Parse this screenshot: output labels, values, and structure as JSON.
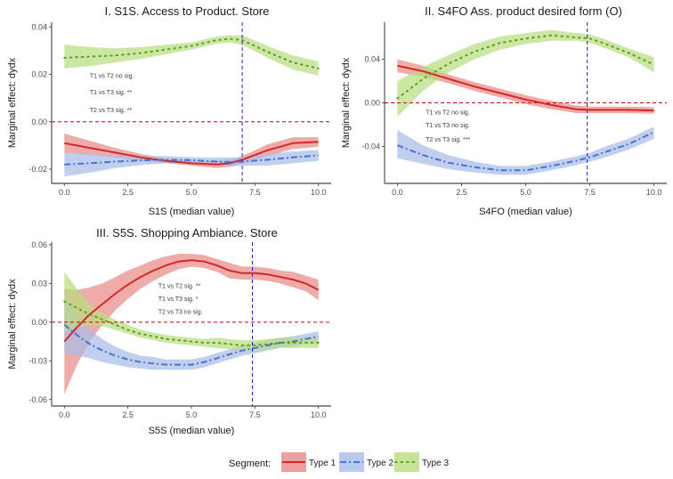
{
  "colors": {
    "type1_line": "#d62728",
    "type1_band": "#e88a86",
    "type2_line": "#4a72d4",
    "type2_band": "#a9bde8",
    "type3_line": "#5c9d25",
    "type3_band": "#b9dc7f",
    "zero_line": "#cc0000",
    "median_line": "#1f1fc8"
  },
  "legend": {
    "title": "Segment:",
    "items": [
      {
        "label": "Type 1",
        "style": "solid"
      },
      {
        "label": "Type 2",
        "style": "dashdot"
      },
      {
        "label": "Type 3",
        "style": "dotted"
      }
    ]
  },
  "chart_data": [
    {
      "type": "line",
      "title": "I. S1S. Access to Product. Store",
      "xlabel": "S1S (median value)",
      "ylabel": "Marginal effect: dydx",
      "xlim": [
        -0.5,
        10.5
      ],
      "ylim": [
        -0.026,
        0.042
      ],
      "xticks": [
        "0.0",
        "2.5",
        "5.0",
        "7.5",
        "10.0"
      ],
      "xtick_values": [
        0,
        2.5,
        5,
        7.5,
        10
      ],
      "yticks": [
        "-0.02",
        "0.00",
        "0.02",
        "0.04"
      ],
      "ytick_values": [
        -0.02,
        0,
        0.02,
        0.04
      ],
      "median_x": 7.0,
      "grid": false,
      "annotations": [
        "T1 vs T2 no sig.",
        "T1 vs T3 sig. **",
        "T2 vs T3 sig. **"
      ],
      "annotation_pos": [
        [
          1.0,
          0.0185
        ],
        [
          1.0,
          0.0115
        ],
        [
          1.0,
          0.004
        ]
      ],
      "x": [
        0,
        1,
        2,
        3,
        4,
        5,
        6,
        6.5,
        7,
        8,
        9,
        10
      ],
      "series": [
        {
          "name": "Type 1",
          "values": [
            -0.009,
            -0.011,
            -0.013,
            -0.015,
            -0.0165,
            -0.0175,
            -0.018,
            -0.0175,
            -0.016,
            -0.012,
            -0.009,
            -0.0085
          ],
          "lower": [
            -0.013,
            -0.014,
            -0.015,
            -0.0165,
            -0.0175,
            -0.0185,
            -0.0195,
            -0.019,
            -0.0175,
            -0.0145,
            -0.0115,
            -0.0105
          ],
          "upper": [
            -0.005,
            -0.008,
            -0.011,
            -0.0135,
            -0.0155,
            -0.0165,
            -0.0165,
            -0.016,
            -0.0145,
            -0.0095,
            -0.0065,
            -0.0065
          ]
        },
        {
          "name": "Type 2",
          "values": [
            -0.018,
            -0.0175,
            -0.0168,
            -0.0163,
            -0.016,
            -0.0162,
            -0.0168,
            -0.017,
            -0.0168,
            -0.016,
            -0.015,
            -0.0142
          ],
          "lower": [
            -0.023,
            -0.0215,
            -0.0195,
            -0.0183,
            -0.0175,
            -0.0175,
            -0.0185,
            -0.019,
            -0.0185,
            -0.0185,
            -0.0175,
            -0.0165
          ],
          "upper": [
            -0.013,
            -0.0135,
            -0.0141,
            -0.0143,
            -0.0145,
            -0.0149,
            -0.0151,
            -0.015,
            -0.0151,
            -0.0135,
            -0.0125,
            -0.0119
          ]
        },
        {
          "name": "Type 3",
          "values": [
            0.027,
            0.0275,
            0.028,
            0.029,
            0.0305,
            0.032,
            0.0345,
            0.035,
            0.0345,
            0.0295,
            0.025,
            0.0225
          ],
          "lower": [
            0.0225,
            0.0235,
            0.025,
            0.0265,
            0.0285,
            0.0305,
            0.033,
            0.0335,
            0.0325,
            0.027,
            0.022,
            0.0195
          ],
          "upper": [
            0.0325,
            0.0315,
            0.031,
            0.0315,
            0.0325,
            0.0335,
            0.036,
            0.0365,
            0.0365,
            0.032,
            0.028,
            0.0255
          ]
        }
      ]
    },
    {
      "type": "line",
      "title": "II. S4FO  Ass. product desired form (O)",
      "xlabel": "S4FO (median value)",
      "ylabel": "Marginal effect: dydx",
      "xlim": [
        -0.5,
        10.5
      ],
      "ylim": [
        -0.074,
        0.074
      ],
      "xticks": [
        "0.0",
        "2.5",
        "5.0",
        "7.5",
        "10.0"
      ],
      "xtick_values": [
        0,
        2.5,
        5,
        7.5,
        10
      ],
      "yticks": [
        "-0.04",
        "0.00",
        "0.04"
      ],
      "ytick_values": [
        -0.04,
        0,
        0.04
      ],
      "median_x": 7.4,
      "grid": false,
      "annotations": [
        "T1 vs T2 no sig.",
        "T1 vs T3  no sig.",
        "T2 vs T3 sig. ***"
      ],
      "annotation_pos": [
        [
          1.1,
          -0.0105
        ],
        [
          1.1,
          -0.0225
        ],
        [
          1.1,
          -0.0355
        ]
      ],
      "x": [
        0,
        1,
        2,
        3,
        4,
        5,
        6,
        7,
        7.5,
        8,
        9,
        10
      ],
      "series": [
        {
          "name": "Type 1",
          "values": [
            0.034,
            0.029,
            0.022,
            0.015,
            0.009,
            0.003,
            -0.002,
            -0.006,
            -0.0065,
            -0.0065,
            -0.0065,
            -0.007
          ],
          "lower": [
            0.028,
            0.024,
            0.018,
            0.011,
            0.005,
            -0.001,
            -0.006,
            -0.0095,
            -0.0095,
            -0.0095,
            -0.0095,
            -0.01
          ],
          "upper": [
            0.04,
            0.034,
            0.026,
            0.019,
            0.013,
            0.007,
            0.002,
            -0.0025,
            -0.0035,
            -0.0035,
            -0.0035,
            -0.004
          ]
        },
        {
          "name": "Type 2",
          "values": [
            -0.039,
            -0.048,
            -0.055,
            -0.059,
            -0.062,
            -0.062,
            -0.058,
            -0.053,
            -0.05,
            -0.046,
            -0.038,
            -0.027
          ],
          "lower": [
            -0.051,
            -0.056,
            -0.061,
            -0.064,
            -0.066,
            -0.066,
            -0.062,
            -0.057,
            -0.054,
            -0.051,
            -0.043,
            -0.033
          ],
          "upper": [
            -0.025,
            -0.039,
            -0.048,
            -0.054,
            -0.058,
            -0.058,
            -0.054,
            -0.049,
            -0.046,
            -0.041,
            -0.033,
            -0.022
          ]
        },
        {
          "name": "Type 3",
          "values": [
            0.004,
            0.022,
            0.036,
            0.047,
            0.055,
            0.059,
            0.062,
            0.06,
            0.059,
            0.055,
            0.046,
            0.035
          ],
          "lower": [
            -0.013,
            0.011,
            0.028,
            0.04,
            0.049,
            0.054,
            0.057,
            0.057,
            0.055,
            0.051,
            0.042,
            0.028
          ],
          "upper": [
            0.02,
            0.033,
            0.044,
            0.054,
            0.061,
            0.064,
            0.067,
            0.064,
            0.063,
            0.059,
            0.05,
            0.042
          ]
        }
      ]
    },
    {
      "type": "line",
      "title": "III.  S5S. Shopping Ambiance. Store",
      "xlabel": "S5S (median value)",
      "ylabel": "Marginal effect: dydx",
      "xlim": [
        -0.5,
        10.5
      ],
      "ylim": [
        -0.065,
        0.062
      ],
      "xticks": [
        "0.0",
        "2.5",
        "5.0",
        "7.5",
        "10.0"
      ],
      "xtick_values": [
        0,
        2.5,
        5,
        7.5,
        10
      ],
      "yticks": [
        "-0.06",
        "-0.03",
        "0.00",
        "0.03",
        "0.06"
      ],
      "ytick_values": [
        -0.06,
        -0.03,
        0,
        0.03,
        0.06
      ],
      "median_x": 7.4,
      "grid": false,
      "annotations": [
        "T1 vs T2 sig. **",
        "T1 vs T3  sig. *",
        "T2 vs T3 no sig."
      ],
      "annotation_pos": [
        [
          3.7,
          0.0265
        ],
        [
          3.7,
          0.0165
        ],
        [
          3.7,
          0.0065
        ]
      ],
      "x": [
        0,
        0.5,
        1,
        1.5,
        2,
        2.5,
        3,
        3.5,
        4,
        4.5,
        5,
        5.5,
        6,
        6.5,
        7,
        7.5,
        8,
        8.5,
        9,
        9.5,
        10
      ],
      "series": [
        {
          "name": "Type 1",
          "values": [
            -0.015,
            -0.004,
            0.006,
            0.014,
            0.022,
            0.029,
            0.035,
            0.04,
            0.044,
            0.047,
            0.048,
            0.047,
            0.044,
            0.04,
            0.038,
            0.038,
            0.037,
            0.035,
            0.033,
            0.03,
            0.025
          ],
          "lower": [
            -0.056,
            -0.033,
            -0.015,
            -0.002,
            0.009,
            0.018,
            0.026,
            0.032,
            0.037,
            0.041,
            0.043,
            0.042,
            0.039,
            0.034,
            0.033,
            0.033,
            0.032,
            0.03,
            0.027,
            0.024,
            0.017
          ],
          "upper": [
            0.026,
            0.025,
            0.027,
            0.03,
            0.035,
            0.04,
            0.044,
            0.048,
            0.051,
            0.053,
            0.053,
            0.052,
            0.049,
            0.046,
            0.043,
            0.043,
            0.042,
            0.04,
            0.039,
            0.036,
            0.033
          ]
        },
        {
          "name": "Type 2",
          "values": [
            -0.002,
            -0.01,
            -0.017,
            -0.022,
            -0.026,
            -0.029,
            -0.031,
            -0.032,
            -0.033,
            -0.033,
            -0.033,
            -0.031,
            -0.028,
            -0.025,
            -0.022,
            -0.02,
            -0.018,
            -0.016,
            -0.015,
            -0.013,
            -0.011
          ],
          "lower": [
            -0.024,
            -0.026,
            -0.028,
            -0.031,
            -0.033,
            -0.035,
            -0.036,
            -0.037,
            -0.037,
            -0.037,
            -0.037,
            -0.035,
            -0.032,
            -0.029,
            -0.026,
            -0.024,
            -0.022,
            -0.02,
            -0.019,
            -0.017,
            -0.015
          ],
          "upper": [
            0.02,
            0.006,
            -0.006,
            -0.013,
            -0.019,
            -0.023,
            -0.026,
            -0.027,
            -0.029,
            -0.029,
            -0.029,
            -0.027,
            -0.024,
            -0.021,
            -0.018,
            -0.016,
            -0.014,
            -0.012,
            -0.011,
            -0.009,
            -0.007
          ]
        },
        {
          "name": "Type 3",
          "values": [
            0.016,
            0.011,
            0.006,
            0.002,
            -0.002,
            -0.006,
            -0.009,
            -0.011,
            -0.013,
            -0.014,
            -0.015,
            -0.016,
            -0.016,
            -0.017,
            -0.018,
            -0.018,
            -0.017,
            -0.016,
            -0.016,
            -0.016,
            -0.016
          ],
          "lower": [
            -0.007,
            -0.004,
            -0.002,
            -0.003,
            -0.006,
            -0.009,
            -0.012,
            -0.014,
            -0.016,
            -0.017,
            -0.018,
            -0.019,
            -0.02,
            -0.021,
            -0.022,
            -0.022,
            -0.021,
            -0.02,
            -0.02,
            -0.02,
            -0.02
          ],
          "upper": [
            0.039,
            0.026,
            0.014,
            0.007,
            0.002,
            -0.002,
            -0.006,
            -0.008,
            -0.01,
            -0.011,
            -0.012,
            -0.013,
            -0.012,
            -0.013,
            -0.014,
            -0.014,
            -0.013,
            -0.012,
            -0.012,
            -0.012,
            -0.012
          ]
        }
      ]
    }
  ]
}
